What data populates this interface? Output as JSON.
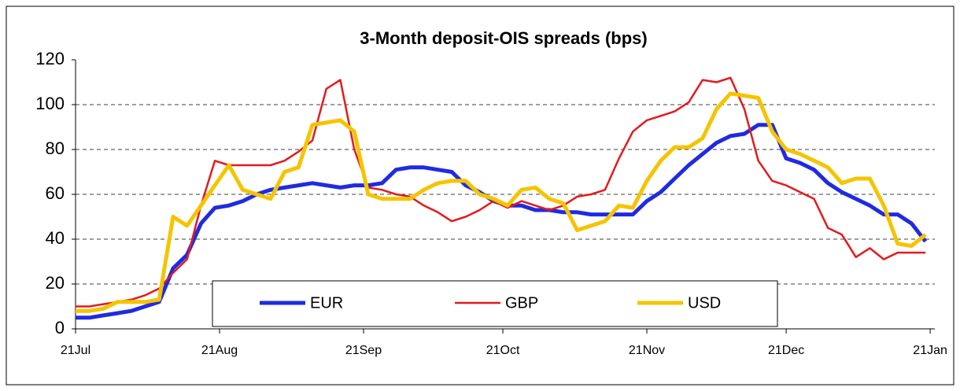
{
  "chart_data": {
    "type": "line",
    "title": "3-Month deposit-OIS spreads (bps)",
    "x": [
      0,
      3,
      6,
      9,
      12,
      15,
      18,
      21,
      24,
      27,
      30,
      33,
      36,
      39,
      42,
      45,
      48,
      51,
      54,
      57,
      60,
      63,
      66,
      69,
      72,
      75,
      78,
      81,
      84,
      87,
      90,
      93,
      96,
      99,
      102,
      105,
      108,
      111,
      114,
      117,
      120,
      123,
      126,
      129,
      132,
      135,
      138,
      141,
      144,
      147,
      150,
      153,
      156,
      159,
      162,
      165,
      168,
      171,
      174,
      177,
      180,
      183
    ],
    "xlim": [
      0,
      185
    ],
    "xticks": [
      {
        "value": 0,
        "label": "21Jul"
      },
      {
        "value": 31,
        "label": "21Aug"
      },
      {
        "value": 62,
        "label": "21Sep"
      },
      {
        "value": 92,
        "label": "21Oct"
      },
      {
        "value": 123,
        "label": "21Nov"
      },
      {
        "value": 153,
        "label": "21Dec"
      },
      {
        "value": 184,
        "label": "21Jan"
      }
    ],
    "ylim": [
      0,
      120
    ],
    "yticks": [
      0,
      20,
      40,
      60,
      80,
      100,
      120
    ],
    "grid": true,
    "series": [
      {
        "name": "EUR",
        "color": "#1f2be0",
        "values": [
          5,
          5,
          6,
          7,
          8,
          10,
          12,
          27,
          33,
          47,
          54,
          55,
          57,
          60,
          62,
          63,
          64,
          65,
          64,
          63,
          64,
          64,
          65,
          71,
          72,
          72,
          71,
          70,
          64,
          61,
          57,
          55,
          55,
          53,
          53,
          52,
          52,
          51,
          51,
          51,
          51,
          57,
          61,
          67,
          73,
          78,
          83,
          86,
          87,
          91,
          91,
          76,
          74,
          71,
          65,
          61,
          58,
          55,
          51,
          51,
          47,
          39
        ]
      },
      {
        "name": "GBP",
        "color": "#e41a1c",
        "values": [
          10,
          10,
          11,
          12,
          13,
          15,
          18,
          25,
          31,
          55,
          75,
          73,
          73,
          73,
          73,
          75,
          79,
          84,
          107,
          111,
          80,
          63,
          62,
          60,
          59,
          55,
          52,
          48,
          50,
          53,
          57,
          54,
          57,
          55,
          53,
          55,
          59,
          60,
          62,
          76,
          88,
          93,
          95,
          97,
          101,
          111,
          110,
          112,
          98,
          75,
          66,
          64,
          61,
          58,
          45,
          42,
          32,
          36,
          31,
          34,
          34,
          34
        ]
      },
      {
        "name": "USD",
        "color": "#f5c400",
        "values": [
          8,
          8,
          9,
          12,
          12,
          12,
          13,
          50,
          46,
          55,
          64,
          73,
          62,
          60,
          58,
          70,
          72,
          91,
          92,
          93,
          88,
          60,
          58,
          58,
          58,
          62,
          65,
          66,
          66,
          60,
          58,
          55,
          62,
          63,
          58,
          56,
          44,
          46,
          48,
          55,
          54,
          66,
          75,
          81,
          81,
          85,
          98,
          105,
          104,
          103,
          88,
          80,
          78,
          75,
          72,
          65,
          67,
          67,
          55,
          38,
          37,
          42
        ]
      }
    ]
  }
}
